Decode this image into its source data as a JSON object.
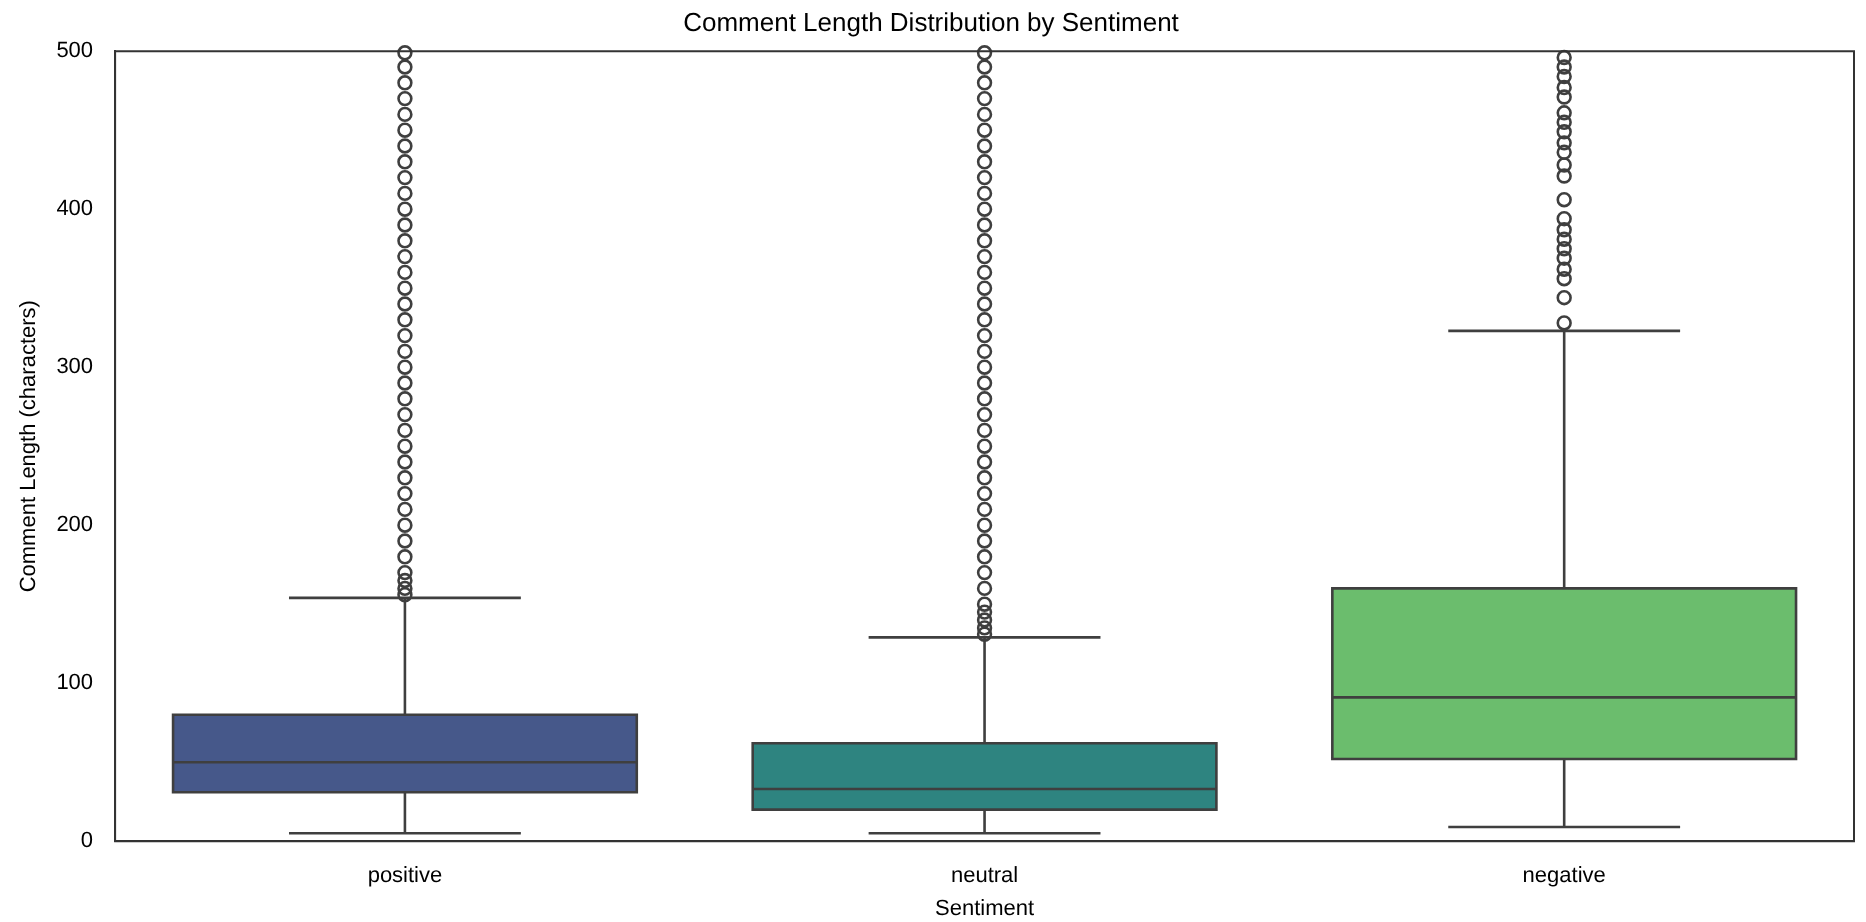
{
  "chart_data": {
    "type": "box",
    "title": "Comment Length Distribution by Sentiment",
    "xlabel": "Sentiment",
    "ylabel": "Comment Length (characters)",
    "categories": [
      "positive",
      "neutral",
      "negative"
    ],
    "colors": [
      "#46588a",
      "#2e8480",
      "#6bbd6d"
    ],
    "ylim": [
      0,
      500
    ],
    "yticks": [
      0,
      100,
      200,
      300,
      400,
      500
    ],
    "grid": false,
    "legend": false,
    "boxes": [
      {
        "low": 5,
        "q1": 31,
        "median": 50,
        "q3": 80,
        "high": 154,
        "outliers": [
          156,
          160,
          165,
          170,
          180,
          190,
          200,
          210,
          220,
          230,
          240,
          250,
          260,
          270,
          280,
          290,
          300,
          310,
          320,
          330,
          340,
          350,
          360,
          370,
          380,
          390,
          400,
          410,
          420,
          430,
          440,
          450,
          460,
          470,
          480,
          490,
          499
        ]
      },
      {
        "low": 5,
        "q1": 20,
        "median": 33,
        "q3": 62,
        "high": 129,
        "outliers": [
          131,
          135,
          140,
          145,
          150,
          160,
          170,
          180,
          190,
          200,
          210,
          220,
          230,
          240,
          250,
          260,
          270,
          280,
          290,
          300,
          310,
          320,
          330,
          340,
          350,
          360,
          370,
          380,
          390,
          400,
          410,
          420,
          430,
          440,
          450,
          460,
          470,
          480,
          490,
          499
        ]
      },
      {
        "low": 9,
        "q1": 52,
        "median": 91,
        "q3": 160,
        "high": 323,
        "outliers": [
          328,
          344,
          356,
          362,
          369,
          375,
          381,
          387,
          394,
          406,
          421,
          428,
          436,
          442,
          449,
          455,
          461,
          471,
          477,
          484,
          490,
          496
        ]
      }
    ]
  }
}
